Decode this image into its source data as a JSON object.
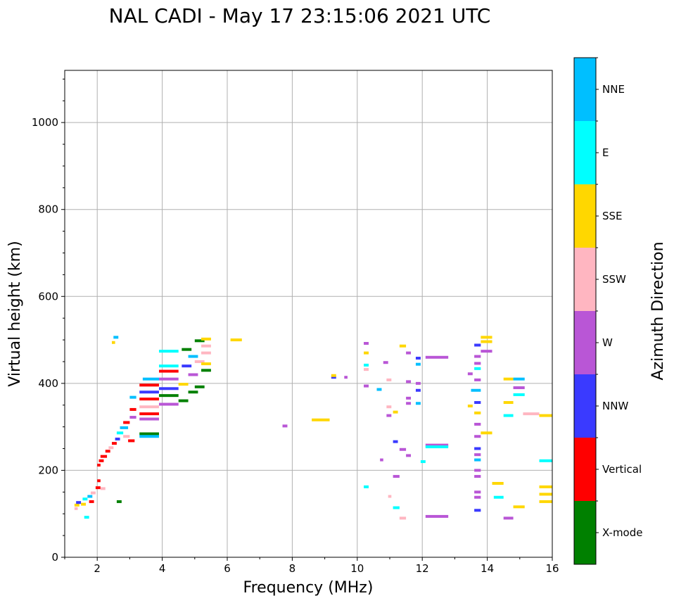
{
  "chart_data": {
    "type": "scatter",
    "title": "NAL CADI - May 17 23:15:06 2021 UTC",
    "xlabel": "Frequency (MHz)",
    "ylabel": "Virtual height (km)",
    "xlim": [
      1,
      16
    ],
    "ylim": [
      0,
      1120
    ],
    "xticks": [
      2,
      4,
      6,
      8,
      10,
      12,
      14,
      16
    ],
    "yticks": [
      0,
      200,
      400,
      600,
      800,
      1000
    ],
    "grid": true,
    "colorbar": {
      "label": "Azimuth Direction",
      "categories": [
        {
          "name": "X-mode",
          "color": "#008000"
        },
        {
          "name": "Vertical",
          "color": "#ff0000"
        },
        {
          "name": "NNW",
          "color": "#3a3aff"
        },
        {
          "name": "W",
          "color": "#b956d6"
        },
        {
          "name": "SSW",
          "color": "#ffb6c1"
        },
        {
          "name": "SSE",
          "color": "#ffd700"
        },
        {
          "name": "E",
          "color": "#00ffff"
        },
        {
          "name": "NNE",
          "color": "#00bfff"
        }
      ]
    },
    "echoes": [
      {
        "f": 1.3,
        "f2": 1.45,
        "h": 120,
        "dir": "SSE"
      },
      {
        "f": 1.3,
        "f2": 1.4,
        "h": 112,
        "dir": "SSW"
      },
      {
        "f": 1.35,
        "f2": 1.5,
        "h": 126,
        "dir": "NNW"
      },
      {
        "f": 1.5,
        "f2": 1.65,
        "h": 122,
        "dir": "SSE"
      },
      {
        "f": 1.55,
        "f2": 1.7,
        "h": 134,
        "dir": "E"
      },
      {
        "f": 1.6,
        "f2": 1.75,
        "h": 92,
        "dir": "E"
      },
      {
        "f": 1.7,
        "f2": 1.85,
        "h": 140,
        "dir": "NNE"
      },
      {
        "f": 1.75,
        "f2": 1.9,
        "h": 128,
        "dir": "Vertical"
      },
      {
        "f": 1.8,
        "f2": 1.95,
        "h": 148,
        "dir": "SSW"
      },
      {
        "f": 1.95,
        "f2": 2.1,
        "h": 160,
        "dir": "Vertical"
      },
      {
        "f": 2.0,
        "f2": 2.1,
        "h": 176,
        "dir": "Vertical"
      },
      {
        "f": 2.0,
        "f2": 2.1,
        "h": 212,
        "dir": "Vertical"
      },
      {
        "f": 2.05,
        "f2": 2.2,
        "h": 222,
        "dir": "Vertical"
      },
      {
        "f": 2.1,
        "f2": 2.25,
        "h": 158,
        "dir": "SSW"
      },
      {
        "f": 2.1,
        "f2": 2.3,
        "h": 232,
        "dir": "Vertical"
      },
      {
        "f": 2.25,
        "f2": 2.4,
        "h": 244,
        "dir": "Vertical"
      },
      {
        "f": 2.35,
        "f2": 2.5,
        "h": 252,
        "dir": "SSW"
      },
      {
        "f": 2.45,
        "f2": 2.6,
        "h": 262,
        "dir": "Vertical"
      },
      {
        "f": 2.55,
        "f2": 2.7,
        "h": 272,
        "dir": "NNW"
      },
      {
        "f": 2.6,
        "f2": 2.75,
        "h": 128,
        "dir": "X-mode"
      },
      {
        "f": 2.6,
        "f2": 2.8,
        "h": 286,
        "dir": "E"
      },
      {
        "f": 2.7,
        "f2": 2.95,
        "h": 298,
        "dir": "NNE"
      },
      {
        "f": 2.8,
        "f2": 3.0,
        "h": 278,
        "dir": "SSW"
      },
      {
        "f": 2.8,
        "f2": 3.0,
        "h": 310,
        "dir": "Vertical"
      },
      {
        "f": 2.95,
        "f2": 3.15,
        "h": 268,
        "dir": "Vertical"
      },
      {
        "f": 3.0,
        "f2": 3.2,
        "h": 322,
        "dir": "W"
      },
      {
        "f": 3.0,
        "f2": 3.2,
        "h": 340,
        "dir": "Vertical"
      },
      {
        "f": 3.0,
        "f2": 3.2,
        "h": 368,
        "dir": "NNE"
      },
      {
        "f": 3.3,
        "f2": 3.9,
        "h": 284,
        "dir": "X-mode"
      },
      {
        "f": 3.3,
        "f2": 3.9,
        "h": 278,
        "dir": "NNE"
      },
      {
        "f": 3.3,
        "f2": 3.9,
        "h": 318,
        "dir": "W"
      },
      {
        "f": 3.3,
        "f2": 3.9,
        "h": 330,
        "dir": "Vertical"
      },
      {
        "f": 3.3,
        "f2": 3.9,
        "h": 346,
        "dir": "SSW"
      },
      {
        "f": 3.3,
        "f2": 3.9,
        "h": 364,
        "dir": "Vertical"
      },
      {
        "f": 3.3,
        "f2": 3.9,
        "h": 380,
        "dir": "NNW"
      },
      {
        "f": 3.3,
        "f2": 3.9,
        "h": 396,
        "dir": "Vertical"
      },
      {
        "f": 3.4,
        "f2": 3.9,
        "h": 410,
        "dir": "NNE"
      },
      {
        "f": 3.9,
        "f2": 4.5,
        "h": 352,
        "dir": "W"
      },
      {
        "f": 3.9,
        "f2": 4.5,
        "h": 372,
        "dir": "X-mode"
      },
      {
        "f": 3.9,
        "f2": 4.5,
        "h": 388,
        "dir": "NNW"
      },
      {
        "f": 3.9,
        "f2": 4.5,
        "h": 410,
        "dir": "W"
      },
      {
        "f": 3.9,
        "f2": 4.5,
        "h": 428,
        "dir": "Vertical"
      },
      {
        "f": 3.9,
        "f2": 4.5,
        "h": 440,
        "dir": "E"
      },
      {
        "f": 3.9,
        "f2": 4.5,
        "h": 474,
        "dir": "E"
      },
      {
        "f": 4.5,
        "f2": 4.8,
        "h": 360,
        "dir": "X-mode"
      },
      {
        "f": 4.5,
        "f2": 4.8,
        "h": 398,
        "dir": "SSE"
      },
      {
        "f": 4.6,
        "f2": 4.9,
        "h": 440,
        "dir": "NNW"
      },
      {
        "f": 4.6,
        "f2": 4.9,
        "h": 478,
        "dir": "X-mode"
      },
      {
        "f": 4.8,
        "f2": 5.1,
        "h": 380,
        "dir": "X-mode"
      },
      {
        "f": 4.8,
        "f2": 5.1,
        "h": 420,
        "dir": "W"
      },
      {
        "f": 4.8,
        "f2": 5.1,
        "h": 462,
        "dir": "NNE"
      },
      {
        "f": 5.0,
        "f2": 5.3,
        "h": 392,
        "dir": "X-mode"
      },
      {
        "f": 5.0,
        "f2": 5.3,
        "h": 450,
        "dir": "SSW"
      },
      {
        "f": 5.0,
        "f2": 5.3,
        "h": 498,
        "dir": "X-mode"
      },
      {
        "f": 5.2,
        "f2": 5.5,
        "h": 430,
        "dir": "X-mode"
      },
      {
        "f": 5.2,
        "f2": 5.5,
        "h": 445,
        "dir": "SSE"
      },
      {
        "f": 5.2,
        "f2": 5.5,
        "h": 470,
        "dir": "SSW"
      },
      {
        "f": 5.2,
        "f2": 5.5,
        "h": 486,
        "dir": "SSW"
      },
      {
        "f": 5.2,
        "f2": 5.5,
        "h": 502,
        "dir": "SSE"
      },
      {
        "f": 6.1,
        "f2": 6.45,
        "h": 500,
        "dir": "SSE"
      },
      {
        "f": 2.45,
        "f2": 2.55,
        "h": 494,
        "dir": "SSE"
      },
      {
        "f": 2.5,
        "f2": 2.65,
        "h": 506,
        "dir": "NNE"
      },
      {
        "f": 7.7,
        "f2": 7.85,
        "h": 302,
        "dir": "W"
      },
      {
        "f": 8.6,
        "f2": 9.15,
        "h": 316,
        "dir": "SSE"
      },
      {
        "f": 9.2,
        "f2": 9.35,
        "h": 414,
        "dir": "NNW"
      },
      {
        "f": 9.2,
        "f2": 9.35,
        "h": 418,
        "dir": "SSE"
      },
      {
        "f": 9.6,
        "f2": 9.7,
        "h": 414,
        "dir": "W"
      },
      {
        "f": 10.2,
        "f2": 10.35,
        "h": 492,
        "dir": "W"
      },
      {
        "f": 10.2,
        "f2": 10.35,
        "h": 470,
        "dir": "SSE"
      },
      {
        "f": 10.2,
        "f2": 10.35,
        "h": 442,
        "dir": "E"
      },
      {
        "f": 10.2,
        "f2": 10.35,
        "h": 432,
        "dir": "SSW"
      },
      {
        "f": 10.2,
        "f2": 10.35,
        "h": 394,
        "dir": "W"
      },
      {
        "f": 10.2,
        "f2": 10.35,
        "h": 162,
        "dir": "E"
      },
      {
        "f": 10.6,
        "f2": 10.75,
        "h": 386,
        "dir": "NNE"
      },
      {
        "f": 10.7,
        "f2": 10.8,
        "h": 224,
        "dir": "W"
      },
      {
        "f": 10.8,
        "f2": 10.95,
        "h": 448,
        "dir": "W"
      },
      {
        "f": 10.9,
        "f2": 11.05,
        "h": 408,
        "dir": "SSW"
      },
      {
        "f": 10.9,
        "f2": 11.05,
        "h": 346,
        "dir": "SSW"
      },
      {
        "f": 10.9,
        "f2": 11.05,
        "h": 326,
        "dir": "W"
      },
      {
        "f": 10.95,
        "f2": 11.05,
        "h": 140,
        "dir": "SSW"
      },
      {
        "f": 11.1,
        "f2": 11.25,
        "h": 334,
        "dir": "SSE"
      },
      {
        "f": 11.1,
        "f2": 11.25,
        "h": 266,
        "dir": "NNW"
      },
      {
        "f": 11.1,
        "f2": 11.3,
        "h": 186,
        "dir": "W"
      },
      {
        "f": 11.1,
        "f2": 11.3,
        "h": 114,
        "dir": "E"
      },
      {
        "f": 11.3,
        "f2": 11.5,
        "h": 486,
        "dir": "SSE"
      },
      {
        "f": 11.3,
        "f2": 11.5,
        "h": 248,
        "dir": "W"
      },
      {
        "f": 11.3,
        "f2": 11.5,
        "h": 90,
        "dir": "SSW"
      },
      {
        "f": 11.5,
        "f2": 11.65,
        "h": 470,
        "dir": "W"
      },
      {
        "f": 11.5,
        "f2": 11.65,
        "h": 404,
        "dir": "W"
      },
      {
        "f": 11.5,
        "f2": 11.65,
        "h": 366,
        "dir": "W"
      },
      {
        "f": 11.5,
        "f2": 11.65,
        "h": 354,
        "dir": "W"
      },
      {
        "f": 11.5,
        "f2": 11.65,
        "h": 234,
        "dir": "W"
      },
      {
        "f": 11.8,
        "f2": 11.95,
        "h": 458,
        "dir": "NNW"
      },
      {
        "f": 11.8,
        "f2": 11.95,
        "h": 444,
        "dir": "NNE"
      },
      {
        "f": 11.8,
        "f2": 11.95,
        "h": 400,
        "dir": "W"
      },
      {
        "f": 11.8,
        "f2": 11.95,
        "h": 384,
        "dir": "NNW"
      },
      {
        "f": 11.8,
        "f2": 11.95,
        "h": 354,
        "dir": "NNE"
      },
      {
        "f": 11.95,
        "f2": 12.1,
        "h": 220,
        "dir": "E"
      },
      {
        "f": 12.1,
        "f2": 12.8,
        "h": 460,
        "dir": "W"
      },
      {
        "f": 12.1,
        "f2": 12.8,
        "h": 258,
        "dir": "W"
      },
      {
        "f": 12.1,
        "f2": 12.8,
        "h": 254,
        "dir": "E"
      },
      {
        "f": 12.1,
        "f2": 12.8,
        "h": 94,
        "dir": "W"
      },
      {
        "f": 13.4,
        "f2": 13.55,
        "h": 422,
        "dir": "W"
      },
      {
        "f": 13.4,
        "f2": 13.55,
        "h": 348,
        "dir": "SSE"
      },
      {
        "f": 13.6,
        "f2": 13.8,
        "h": 488,
        "dir": "NNW"
      },
      {
        "f": 13.6,
        "f2": 13.8,
        "h": 462,
        "dir": "W"
      },
      {
        "f": 13.6,
        "f2": 13.8,
        "h": 446,
        "dir": "W"
      },
      {
        "f": 13.6,
        "f2": 13.8,
        "h": 434,
        "dir": "E"
      },
      {
        "f": 13.6,
        "f2": 13.8,
        "h": 408,
        "dir": "W"
      },
      {
        "f": 13.5,
        "f2": 13.8,
        "h": 384,
        "dir": "NNE"
      },
      {
        "f": 13.6,
        "f2": 13.8,
        "h": 356,
        "dir": "NNW"
      },
      {
        "f": 13.6,
        "f2": 13.8,
        "h": 332,
        "dir": "SSE"
      },
      {
        "f": 13.6,
        "f2": 13.8,
        "h": 306,
        "dir": "W"
      },
      {
        "f": 13.6,
        "f2": 13.8,
        "h": 278,
        "dir": "W"
      },
      {
        "f": 13.6,
        "f2": 13.8,
        "h": 250,
        "dir": "NNW"
      },
      {
        "f": 13.6,
        "f2": 13.8,
        "h": 236,
        "dir": "W"
      },
      {
        "f": 13.6,
        "f2": 13.8,
        "h": 224,
        "dir": "NNE"
      },
      {
        "f": 13.6,
        "f2": 13.8,
        "h": 200,
        "dir": "W"
      },
      {
        "f": 13.6,
        "f2": 13.8,
        "h": 186,
        "dir": "W"
      },
      {
        "f": 13.6,
        "f2": 13.8,
        "h": 150,
        "dir": "W"
      },
      {
        "f": 13.6,
        "f2": 13.8,
        "h": 138,
        "dir": "W"
      },
      {
        "f": 13.6,
        "f2": 13.8,
        "h": 108,
        "dir": "NNW"
      },
      {
        "f": 13.8,
        "f2": 14.15,
        "h": 506,
        "dir": "SSE"
      },
      {
        "f": 13.8,
        "f2": 14.15,
        "h": 496,
        "dir": "SSE"
      },
      {
        "f": 13.8,
        "f2": 14.15,
        "h": 474,
        "dir": "W"
      },
      {
        "f": 13.8,
        "f2": 14.15,
        "h": 286,
        "dir": "SSE"
      },
      {
        "f": 14.15,
        "f2": 14.5,
        "h": 170,
        "dir": "SSE"
      },
      {
        "f": 14.2,
        "f2": 14.5,
        "h": 138,
        "dir": "E"
      },
      {
        "f": 14.5,
        "f2": 14.8,
        "h": 410,
        "dir": "SSE"
      },
      {
        "f": 14.5,
        "f2": 14.8,
        "h": 356,
        "dir": "SSE"
      },
      {
        "f": 14.5,
        "f2": 14.8,
        "h": 326,
        "dir": "E"
      },
      {
        "f": 14.5,
        "f2": 14.8,
        "h": 90,
        "dir": "W"
      },
      {
        "f": 14.8,
        "f2": 15.15,
        "h": 410,
        "dir": "NNE"
      },
      {
        "f": 14.8,
        "f2": 15.15,
        "h": 390,
        "dir": "W"
      },
      {
        "f": 14.8,
        "f2": 15.15,
        "h": 374,
        "dir": "E"
      },
      {
        "f": 14.8,
        "f2": 15.15,
        "h": 116,
        "dir": "SSE"
      },
      {
        "f": 15.1,
        "f2": 15.6,
        "h": 330,
        "dir": "SSW"
      },
      {
        "f": 15.6,
        "f2": 16.0,
        "h": 326,
        "dir": "SSE"
      },
      {
        "f": 15.6,
        "f2": 16.0,
        "h": 222,
        "dir": "E"
      },
      {
        "f": 15.6,
        "f2": 16.0,
        "h": 162,
        "dir": "SSE"
      },
      {
        "f": 15.6,
        "f2": 16.0,
        "h": 145,
        "dir": "SSE"
      },
      {
        "f": 15.6,
        "f2": 16.0,
        "h": 128,
        "dir": "SSE"
      }
    ]
  }
}
